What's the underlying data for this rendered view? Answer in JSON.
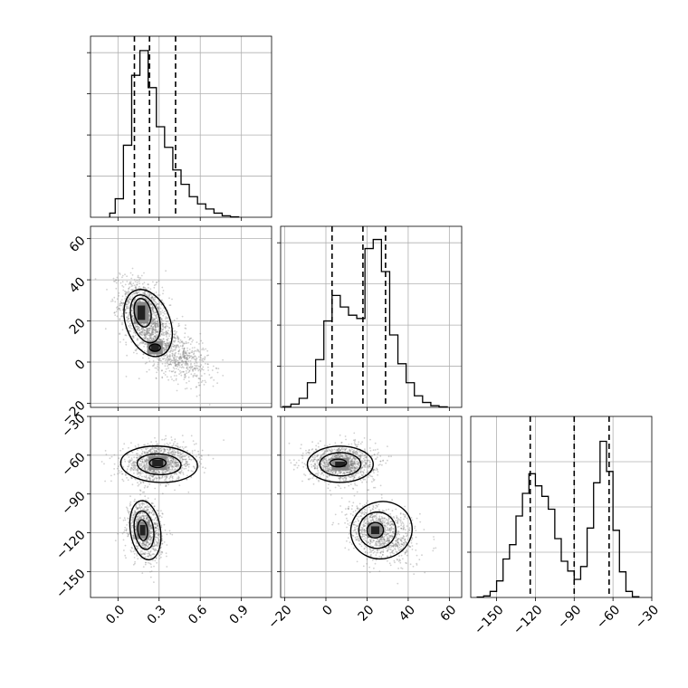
{
  "chart_data": {
    "type": "corner",
    "grid": true,
    "parameters": [
      {
        "id": "p0",
        "range": [
          -0.2,
          1.12
        ],
        "ticks": [
          0.0,
          0.3,
          0.6,
          0.9
        ],
        "tick_labels": [
          "0.0",
          "0.3",
          "0.6",
          "0.9"
        ]
      },
      {
        "id": "p1",
        "range": [
          -22,
          66
        ],
        "ticks": [
          -20,
          0,
          20,
          40,
          60
        ],
        "tick_labels": [
          "−20",
          "0",
          "20",
          "40",
          "60"
        ]
      },
      {
        "id": "p2",
        "range": [
          -170,
          -30
        ],
        "ticks": [
          -150,
          -120,
          -90,
          -60,
          -30
        ],
        "tick_labels": [
          "−150",
          "−120",
          "−90",
          "−60",
          "−30"
        ]
      }
    ],
    "histograms": [
      {
        "param": "p0",
        "quantiles": [
          0.12,
          0.23,
          0.42
        ],
        "bins": [
          [
            -0.06,
            -0.02,
            0.2
          ],
          [
            -0.02,
            0.04,
            0.9
          ],
          [
            0.04,
            0.1,
            3.5
          ],
          [
            0.1,
            0.16,
            6.9
          ],
          [
            0.16,
            0.22,
            8.1
          ],
          [
            0.22,
            0.28,
            6.3
          ],
          [
            0.28,
            0.34,
            4.4
          ],
          [
            0.34,
            0.4,
            3.4
          ],
          [
            0.4,
            0.46,
            2.3
          ],
          [
            0.46,
            0.52,
            1.6
          ],
          [
            0.52,
            0.58,
            1.0
          ],
          [
            0.58,
            0.64,
            0.65
          ],
          [
            0.64,
            0.7,
            0.4
          ],
          [
            0.7,
            0.76,
            0.2
          ],
          [
            0.76,
            0.82,
            0.07
          ],
          [
            0.82,
            0.88,
            0.02
          ]
        ],
        "ylim": [
          0,
          8.8
        ],
        "yticks": [
          2,
          4,
          6,
          8
        ]
      },
      {
        "param": "p1",
        "quantiles": [
          3,
          18,
          29
        ],
        "bins": [
          [
            -21,
            -17,
            0.1
          ],
          [
            -17,
            -13,
            0.4
          ],
          [
            -13,
            -9,
            1.1
          ],
          [
            -9,
            -5,
            3.0
          ],
          [
            -5,
            -1,
            5.8
          ],
          [
            -1,
            3,
            10.5
          ],
          [
            3,
            7,
            13.6
          ],
          [
            7,
            11,
            12.2
          ],
          [
            11,
            15,
            11.2
          ],
          [
            15,
            19,
            10.8
          ],
          [
            19,
            23,
            19.3
          ],
          [
            23,
            27,
            20.4
          ],
          [
            27,
            31,
            16.5
          ],
          [
            31,
            35,
            8.8
          ],
          [
            35,
            39,
            5.3
          ],
          [
            39,
            43,
            3.0
          ],
          [
            43,
            47,
            1.4
          ],
          [
            47,
            51,
            0.6
          ],
          [
            51,
            55,
            0.2
          ],
          [
            55,
            59,
            0.06
          ]
        ],
        "ylim": [
          0,
          22
        ],
        "yticks": [
          5,
          10,
          15,
          20
        ]
      },
      {
        "param": "p2",
        "quantiles": [
          -124,
          -90,
          -63
        ],
        "bins": [
          [
            -165,
            -160,
            0.05
          ],
          [
            -160,
            -155,
            0.2
          ],
          [
            -155,
            -150,
            0.8
          ],
          [
            -150,
            -145,
            2.2
          ],
          [
            -145,
            -140,
            5.1
          ],
          [
            -140,
            -135,
            7.0
          ],
          [
            -135,
            -130,
            10.8
          ],
          [
            -130,
            -125,
            13.8
          ],
          [
            -125,
            -120,
            16.4
          ],
          [
            -120,
            -115,
            14.8
          ],
          [
            -115,
            -110,
            13.4
          ],
          [
            -110,
            -105,
            11.7
          ],
          [
            -105,
            -100,
            7.8
          ],
          [
            -100,
            -95,
            4.8
          ],
          [
            -95,
            -90,
            3.5
          ],
          [
            -90,
            -85,
            2.4
          ],
          [
            -85,
            -80,
            4.1
          ],
          [
            -80,
            -75,
            9.2
          ],
          [
            -75,
            -70,
            15.2
          ],
          [
            -70,
            -65,
            20.7
          ],
          [
            -65,
            -60,
            16.7
          ],
          [
            -60,
            -55,
            8.9
          ],
          [
            -55,
            -50,
            3.4
          ],
          [
            -50,
            -45,
            0.8
          ],
          [
            -45,
            -40,
            0.1
          ]
        ],
        "ylim": [
          0,
          24
        ],
        "yticks": [
          6,
          12,
          18
        ]
      }
    ],
    "scatters": [
      {
        "x": "p0",
        "y": "p1",
        "blobs": [
          {
            "cx": 0.2,
            "cy": 22,
            "sx": 0.09,
            "sy": 9,
            "rho": -0.4,
            "n": 1300
          },
          {
            "cx": 0.42,
            "cy": 4,
            "sx": 0.12,
            "sy": 7,
            "rho": -0.5,
            "n": 700
          }
        ],
        "cores": [
          {
            "cx": 0.17,
            "cy": 24,
            "sx": 0.028,
            "sy": 3.5
          },
          {
            "cx": 0.27,
            "cy": 7,
            "sx": 0.03,
            "sy": 1.5
          }
        ],
        "contours": [
          {
            "cx": 0.22,
            "cy": 19,
            "rx": 0.16,
            "ry": 17,
            "rot": -0.38
          },
          {
            "cx": 0.2,
            "cy": 21,
            "rx": 0.1,
            "ry": 12,
            "rot": -0.3
          },
          {
            "cx": 0.18,
            "cy": 24,
            "rx": 0.06,
            "ry": 7,
            "rot": -0.2
          },
          {
            "cx": 0.27,
            "cy": 7,
            "rx": 0.04,
            "ry": 1.8,
            "rot": 0
          }
        ]
      },
      {
        "x": "p0",
        "y": "p2",
        "blobs": [
          {
            "cx": 0.3,
            "cy": -66,
            "sx": 0.13,
            "sy": 7,
            "rho": 0.1,
            "n": 1200
          },
          {
            "cx": 0.2,
            "cy": -118,
            "sx": 0.06,
            "sy": 11,
            "rho": -0.2,
            "n": 1000
          }
        ],
        "cores": [
          {
            "cx": 0.29,
            "cy": -66,
            "sx": 0.04,
            "sy": 2.5
          },
          {
            "cx": 0.18,
            "cy": -118,
            "sx": 0.02,
            "sy": 4
          }
        ],
        "contours": [
          {
            "cx": 0.3,
            "cy": -67,
            "rx": 0.28,
            "ry": 14,
            "rot": 0.05
          },
          {
            "cx": 0.3,
            "cy": -67,
            "rx": 0.16,
            "ry": 8,
            "rot": 0.05
          },
          {
            "cx": 0.29,
            "cy": -66,
            "rx": 0.06,
            "ry": 3.5,
            "rot": 0
          },
          {
            "cx": 0.2,
            "cy": -118,
            "rx": 0.11,
            "ry": 23,
            "rot": -0.15
          },
          {
            "cx": 0.19,
            "cy": -118,
            "rx": 0.07,
            "ry": 15,
            "rot": -0.15
          },
          {
            "cx": 0.18,
            "cy": -118,
            "rx": 0.035,
            "ry": 8,
            "rot": -0.1
          }
        ]
      },
      {
        "x": "p1",
        "y": "p2",
        "blobs": [
          {
            "cx": 8,
            "cy": -66,
            "sx": 8,
            "sy": 7,
            "rho": 0.0,
            "n": 1200
          },
          {
            "cx": 27,
            "cy": -120,
            "sx": 8,
            "sy": 11,
            "rho": -0.3,
            "n": 1000
          }
        ],
        "cores": [
          {
            "cx": 7,
            "cy": -67,
            "sx": 2.5,
            "sy": 2
          },
          {
            "cx": 24,
            "cy": -118,
            "sx": 2,
            "sy": 3
          }
        ],
        "contours": [
          {
            "cx": 7,
            "cy": -67,
            "rx": 16,
            "ry": 14,
            "rot": 0
          },
          {
            "cx": 7,
            "cy": -67,
            "rx": 10,
            "ry": 9,
            "rot": 0
          },
          {
            "cx": 6,
            "cy": -66,
            "rx": 4,
            "ry": 3,
            "rot": 0
          },
          {
            "cx": 27,
            "cy": -118,
            "rx": 15,
            "ry": 22,
            "rot": -0.3
          },
          {
            "cx": 25,
            "cy": -118,
            "rx": 9,
            "ry": 14,
            "rot": -0.25
          },
          {
            "cx": 24,
            "cy": -118,
            "rx": 4,
            "ry": 6,
            "rot": -0.2
          }
        ]
      }
    ]
  }
}
